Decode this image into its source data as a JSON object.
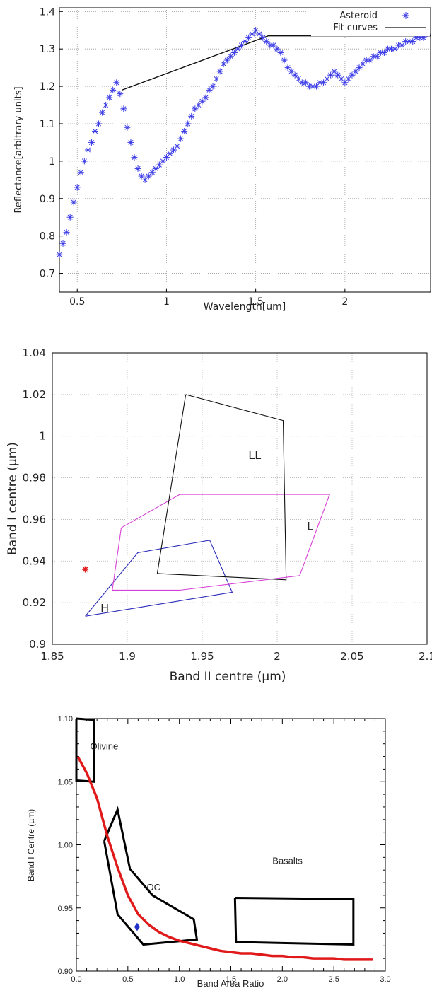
{
  "chart_data": [
    {
      "type": "scatter",
      "title": "",
      "xlabel": "Wavelength[um]",
      "ylabel": "Reflectance[arbitrary units]",
      "xlim": [
        0.4,
        2.48
      ],
      "ylim": [
        0.65,
        1.41
      ],
      "xticks": [
        0.5,
        1,
        1.5,
        2
      ],
      "yticks": [
        0.7,
        0.8,
        0.9,
        1,
        1.1,
        1.2,
        1.3,
        1.4
      ],
      "grid": true,
      "legend_position": "top-right",
      "asteroid_color": "#3a3ae6",
      "fit_color": "#111111",
      "series": [
        {
          "name": "Asteroid",
          "marker": "asterisk",
          "x": [
            0.4,
            0.42,
            0.44,
            0.46,
            0.48,
            0.5,
            0.52,
            0.54,
            0.56,
            0.58,
            0.6,
            0.62,
            0.64,
            0.66,
            0.68,
            0.7,
            0.72,
            0.74,
            0.76,
            0.78,
            0.8,
            0.82,
            0.84,
            0.86,
            0.88,
            0.9,
            0.92,
            0.94,
            0.96,
            0.98,
            1.0,
            1.02,
            1.04,
            1.06,
            1.08,
            1.1,
            1.12,
            1.14,
            1.16,
            1.18,
            1.2,
            1.22,
            1.24,
            1.26,
            1.28,
            1.3,
            1.32,
            1.34,
            1.36,
            1.38,
            1.4,
            1.42,
            1.44,
            1.46,
            1.48,
            1.5,
            1.52,
            1.54,
            1.56,
            1.58,
            1.6,
            1.62,
            1.64,
            1.66,
            1.68,
            1.7,
            1.72,
            1.74,
            1.76,
            1.78,
            1.8,
            1.82,
            1.84,
            1.86,
            1.88,
            1.9,
            1.92,
            1.94,
            1.96,
            1.98,
            2.0,
            2.02,
            2.04,
            2.06,
            2.08,
            2.1,
            2.12,
            2.14,
            2.16,
            2.18,
            2.2,
            2.22,
            2.24,
            2.26,
            2.28,
            2.3,
            2.32,
            2.34,
            2.36,
            2.38,
            2.4,
            2.42,
            2.44,
            2.46
          ],
          "y": [
            0.75,
            0.78,
            0.81,
            0.85,
            0.89,
            0.93,
            0.97,
            1.0,
            1.03,
            1.05,
            1.08,
            1.1,
            1.13,
            1.15,
            1.17,
            1.19,
            1.21,
            1.18,
            1.14,
            1.09,
            1.05,
            1.01,
            0.98,
            0.96,
            0.95,
            0.96,
            0.97,
            0.98,
            0.99,
            1.0,
            1.01,
            1.02,
            1.03,
            1.04,
            1.06,
            1.08,
            1.1,
            1.12,
            1.14,
            1.15,
            1.16,
            1.17,
            1.19,
            1.2,
            1.22,
            1.24,
            1.26,
            1.27,
            1.28,
            1.29,
            1.3,
            1.31,
            1.32,
            1.33,
            1.34,
            1.35,
            1.34,
            1.33,
            1.32,
            1.31,
            1.31,
            1.3,
            1.29,
            1.27,
            1.25,
            1.24,
            1.23,
            1.22,
            1.21,
            1.21,
            1.2,
            1.2,
            1.2,
            1.21,
            1.21,
            1.22,
            1.23,
            1.24,
            1.23,
            1.22,
            1.21,
            1.22,
            1.23,
            1.24,
            1.25,
            1.26,
            1.27,
            1.27,
            1.28,
            1.28,
            1.29,
            1.29,
            1.3,
            1.3,
            1.3,
            1.31,
            1.31,
            1.32,
            1.32,
            1.32,
            1.33,
            1.33,
            1.33,
            1.34
          ]
        },
        {
          "name": "Fit curves",
          "type": "line",
          "x": [
            0.75,
            1.57,
            2.48
          ],
          "y": [
            1.19,
            1.335,
            1.335
          ]
        }
      ]
    },
    {
      "type": "scatter",
      "title": "",
      "xlabel": "Band II centre (µm)",
      "ylabel": "Band I centre (µm)",
      "xlim": [
        1.85,
        2.1
      ],
      "ylim": [
        0.9,
        1.04
      ],
      "xticks": [
        "1.85",
        "1.9",
        "1.95",
        "2",
        "2.05",
        "2.1"
      ],
      "yticks": [
        "0.9",
        "0.92",
        "0.94",
        "0.96",
        "0.98",
        "1",
        "1.02",
        "1.04"
      ],
      "grid": true,
      "regions": [
        {
          "label": "H",
          "color": "#2a2ab8",
          "label_x": 1.885,
          "label_y": 0.9175,
          "points": [
            [
              1.872,
              0.9135
            ],
            [
              1.907,
              0.944
            ],
            [
              1.955,
              0.95
            ],
            [
              1.97,
              0.925
            ],
            [
              1.872,
              0.9135
            ]
          ]
        },
        {
          "label": "L",
          "color": "#d63fd6",
          "label_x": 2.022,
          "label_y": 0.957,
          "points": [
            [
              1.896,
              0.956
            ],
            [
              1.935,
              0.972
            ],
            [
              2.035,
              0.972
            ],
            [
              2.015,
              0.933
            ],
            [
              1.935,
              0.926
            ],
            [
              1.89,
              0.926
            ],
            [
              1.896,
              0.956
            ]
          ]
        },
        {
          "label": "LL",
          "color": "#111111",
          "label_x": 1.985,
          "label_y": 0.991,
          "points": [
            [
              1.939,
              1.02
            ],
            [
              2.004,
              1.0075
            ],
            [
              2.006,
              0.931
            ],
            [
              1.92,
              0.934
            ],
            [
              1.939,
              1.02
            ]
          ]
        }
      ],
      "points": [
        {
          "x": 1.872,
          "y": 0.936,
          "marker": "asterisk",
          "color": "#e02020"
        }
      ]
    },
    {
      "type": "scatter",
      "title": "",
      "xlabel": "Band Area Ratio",
      "ylabel": "Band I Centre (µm)",
      "xlim": [
        0.0,
        3.0
      ],
      "ylim": [
        0.9,
        1.1
      ],
      "xticks": [
        "0.0",
        "0.5",
        "1.0",
        "1.5",
        "2.0",
        "2.5",
        "3.0"
      ],
      "yticks": [
        "0.90",
        "0.95",
        "1.00",
        "1.05",
        "1.10"
      ],
      "grid": false,
      "regions": [
        {
          "label": "Olivine",
          "color": "#000000",
          "label_x": 0.27,
          "label_y": 1.078,
          "points": [
            [
              0.0,
              1.1
            ],
            [
              0.17,
              1.099
            ],
            [
              0.17,
              1.05
            ],
            [
              0.0,
              1.051
            ],
            [
              0.0,
              1.1
            ]
          ]
        },
        {
          "label": "OC",
          "color": "#000000",
          "label_x": 0.75,
          "label_y": 0.966,
          "points": [
            [
              0.27,
              1.003
            ],
            [
              0.4,
              1.028
            ],
            [
              0.52,
              0.981
            ],
            [
              0.74,
              0.96
            ],
            [
              1.14,
              0.941
            ],
            [
              1.17,
              0.925
            ],
            [
              0.65,
              0.921
            ],
            [
              0.4,
              0.945
            ],
            [
              0.27,
              1.003
            ]
          ]
        },
        {
          "label": "Basalts",
          "color": "#000000",
          "label_x": 2.05,
          "label_y": 0.987,
          "points": [
            [
              1.54,
              0.958
            ],
            [
              2.69,
              0.957
            ],
            [
              2.69,
              0.921
            ],
            [
              1.55,
              0.923
            ],
            [
              1.54,
              0.958
            ]
          ]
        }
      ],
      "curve": {
        "color": "#e01a1a",
        "x": [
          0.02,
          0.1,
          0.2,
          0.3,
          0.4,
          0.5,
          0.6,
          0.7,
          0.8,
          0.9,
          1.0,
          1.1,
          1.2,
          1.3,
          1.4,
          1.5,
          1.6,
          1.7,
          1.8,
          1.9,
          2.0,
          2.1,
          2.2,
          2.3,
          2.4,
          2.5,
          2.6,
          2.7,
          2.8,
          2.87
        ],
        "y": [
          1.069,
          1.057,
          1.037,
          1.007,
          0.982,
          0.96,
          0.945,
          0.937,
          0.931,
          0.927,
          0.924,
          0.922,
          0.92,
          0.918,
          0.916,
          0.915,
          0.914,
          0.914,
          0.913,
          0.912,
          0.912,
          0.911,
          0.911,
          0.91,
          0.91,
          0.91,
          0.909,
          0.909,
          0.909,
          0.909
        ]
      },
      "points": [
        {
          "x": 0.59,
          "y": 0.935,
          "marker": "diamond",
          "color": "#2233cc"
        }
      ]
    }
  ]
}
